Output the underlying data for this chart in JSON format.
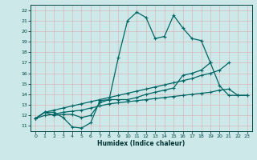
{
  "xlabel": "Humidex (Indice chaleur)",
  "xlim": [
    -0.5,
    23.5
  ],
  "ylim": [
    10.5,
    22.5
  ],
  "xticks": [
    0,
    1,
    2,
    3,
    4,
    5,
    6,
    7,
    8,
    9,
    10,
    11,
    12,
    13,
    14,
    15,
    16,
    17,
    18,
    19,
    20,
    21,
    22,
    23
  ],
  "yticks": [
    11,
    12,
    13,
    14,
    15,
    16,
    17,
    18,
    19,
    20,
    21,
    22
  ],
  "bg_color": "#cce8e8",
  "line_color": "#006666",
  "grid_color": "#b8d8d8",
  "line1_y": [
    11.7,
    12.3,
    12.3,
    11.8,
    10.9,
    10.8,
    11.3,
    13.4,
    13.5,
    17.5,
    21.0,
    21.8,
    21.3,
    19.3,
    19.5,
    21.5,
    20.3,
    19.3,
    19.1,
    17.0,
    null,
    null,
    null,
    null
  ],
  "line2_y": [
    11.7,
    12.3,
    12.0,
    12.1,
    12.1,
    11.8,
    12.0,
    13.2,
    13.5,
    13.5,
    13.5,
    13.7,
    14.0,
    14.2,
    14.4,
    14.6,
    15.8,
    16.0,
    16.3,
    17.0,
    14.8,
    13.9,
    13.9,
    13.9
  ],
  "line3_y": [
    11.7,
    12.3,
    12.5,
    12.7,
    12.9,
    13.1,
    13.3,
    13.5,
    13.7,
    13.9,
    14.1,
    14.3,
    14.5,
    14.7,
    14.9,
    15.1,
    15.3,
    15.5,
    15.8,
    16.0,
    16.3,
    17.0,
    null,
    null
  ],
  "line4_y": [
    11.7,
    12.0,
    12.1,
    12.3,
    12.4,
    12.5,
    12.7,
    12.9,
    13.1,
    13.2,
    13.3,
    13.4,
    13.5,
    13.6,
    13.7,
    13.8,
    13.9,
    14.0,
    14.1,
    14.2,
    14.4,
    14.5,
    13.9,
    13.9
  ]
}
